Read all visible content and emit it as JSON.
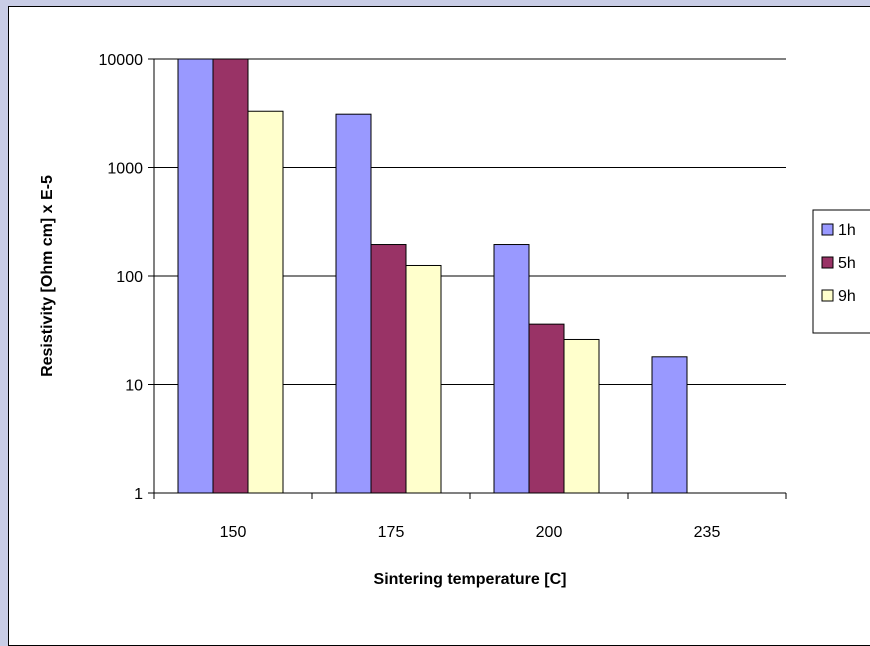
{
  "chart_data": {
    "type": "bar",
    "title": "",
    "xlabel": "Sintering temperature [C]",
    "ylabel": "Resistivity [Ohm cm] x E-5",
    "y_scale": "log",
    "ylim": [
      1,
      10000
    ],
    "y_ticks": [
      "1",
      "10",
      "100",
      "1000",
      "10000"
    ],
    "categories": [
      "150",
      "175",
      "200",
      "235"
    ],
    "series": [
      {
        "name": "1h",
        "color": "#9999ff",
        "values": [
          10000,
          3100,
          195,
          18
        ]
      },
      {
        "name": "5h",
        "color": "#993366",
        "values": [
          10000,
          195,
          36,
          null
        ]
      },
      {
        "name": "9h",
        "color": "#ffffcc",
        "values": [
          3300,
          125,
          26,
          null
        ]
      }
    ],
    "grid": true,
    "legend_position": "right",
    "plot_background": "#ffffff",
    "page_background": "#c9cde6"
  }
}
